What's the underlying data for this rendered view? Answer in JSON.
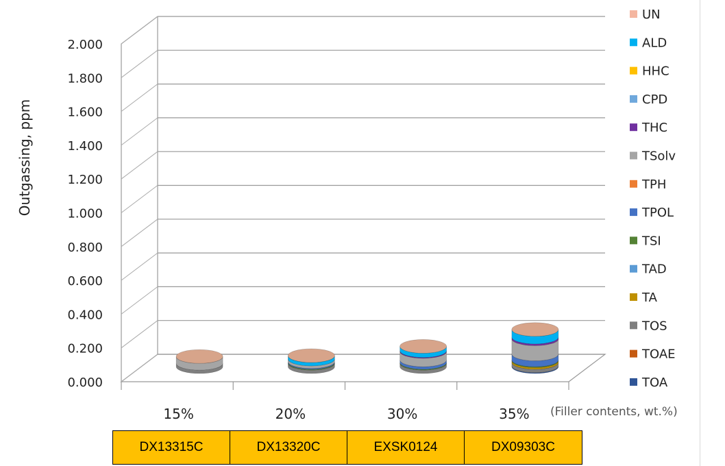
{
  "chart_data": {
    "type": "bar",
    "subtype": "stacked-3d-cylinder",
    "ylabel": "Outgassing, ppm",
    "xnote": "(Filler contents, wt.%)",
    "ylim": [
      0,
      2.0
    ],
    "yticks": [
      "0.000",
      "0.200",
      "0.400",
      "0.600",
      "0.800",
      "1.000",
      "1.200",
      "1.400",
      "1.600",
      "1.800",
      "2.000"
    ],
    "categories": [
      "15%",
      "20%",
      "30%",
      "35%"
    ],
    "samples": [
      "DX13315C",
      "DX13320C",
      "EXSK0124",
      "DX09303C"
    ],
    "legend_position": "right",
    "series": [
      {
        "name": "TOA",
        "color": "#2f5597",
        "values": [
          0.0,
          0.0,
          0.0,
          0.005
        ]
      },
      {
        "name": "TOAE",
        "color": "#c55a11",
        "values": [
          0.0,
          0.0,
          0.0,
          0.0
        ]
      },
      {
        "name": "TOS",
        "color": "#7f7f7f",
        "values": [
          0.02,
          0.02,
          0.02,
          0.02
        ]
      },
      {
        "name": "TA",
        "color": "#bf9000",
        "values": [
          0.0,
          0.0,
          0.0,
          0.01
        ]
      },
      {
        "name": "TAD",
        "color": "#5b9bd5",
        "values": [
          0.0,
          0.0,
          0.0,
          0.0
        ]
      },
      {
        "name": "TSI",
        "color": "#548235",
        "values": [
          0.0,
          0.005,
          0.005,
          0.005
        ]
      },
      {
        "name": "TPOL",
        "color": "#4472c4",
        "values": [
          0.0,
          0.005,
          0.015,
          0.035
        ]
      },
      {
        "name": "TPH",
        "color": "#ed7d31",
        "values": [
          0.0,
          0.0,
          0.0,
          0.0
        ]
      },
      {
        "name": "TSolv",
        "color": "#a5a5a5",
        "values": [
          0.04,
          0.015,
          0.05,
          0.09
        ]
      },
      {
        "name": "THC",
        "color": "#7030a0",
        "values": [
          0.0,
          0.0,
          0.005,
          0.01
        ]
      },
      {
        "name": "CPD",
        "color": "#6fa8dc",
        "values": [
          0.0,
          0.0,
          0.0,
          0.0
        ]
      },
      {
        "name": "HHC",
        "color": "#ffc000",
        "values": [
          0.0,
          0.0,
          0.0,
          0.0
        ]
      },
      {
        "name": "ALD",
        "color": "#00b0f0",
        "values": [
          0.0,
          0.02,
          0.025,
          0.045
        ]
      },
      {
        "name": "UN",
        "color": "#f4b6a0",
        "values": [
          0.0,
          0.0,
          0.0,
          0.0
        ]
      }
    ]
  }
}
